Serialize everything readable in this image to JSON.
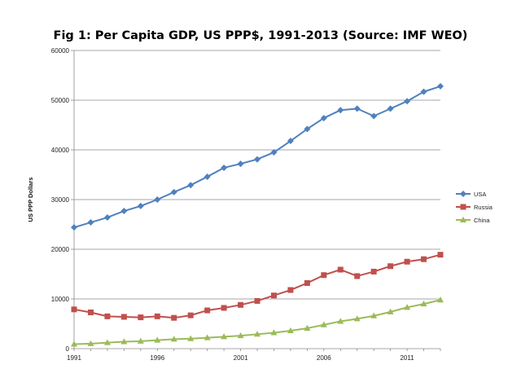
{
  "chart_data": {
    "type": "line",
    "title": "Fig 1: Per Capita GDP, US PPP$, 1991-2013 (Source: IMF WEO)",
    "xlabel": "",
    "ylabel": "US PPP Dollars",
    "x": [
      1991,
      1992,
      1993,
      1994,
      1995,
      1996,
      1997,
      1998,
      1999,
      2000,
      2001,
      2002,
      2003,
      2004,
      2005,
      2006,
      2007,
      2008,
      2009,
      2010,
      2011,
      2012,
      2013
    ],
    "x_tick_labels": [
      "1991",
      "1996",
      "2001",
      "2006",
      "2011"
    ],
    "xlim": [
      1991,
      2013
    ],
    "ylim": [
      0,
      60000
    ],
    "y_tick_labels": [
      "0",
      "10000",
      "20000",
      "30000",
      "40000",
      "50000",
      "60000"
    ],
    "grid": "horizontal",
    "legend_position": "right",
    "series": [
      {
        "name": "USA",
        "color": "#4F81BD",
        "marker": "diamond",
        "values": [
          24400,
          25400,
          26400,
          27700,
          28700,
          30000,
          31500,
          32900,
          34600,
          36400,
          37200,
          38100,
          39500,
          41800,
          44200,
          46400,
          48000,
          48300,
          46800,
          48300,
          49800,
          51700,
          52800
        ]
      },
      {
        "name": "Russia",
        "color": "#C0504D",
        "marker": "square",
        "values": [
          7900,
          7300,
          6500,
          6400,
          6300,
          6500,
          6200,
          6700,
          7700,
          8200,
          8800,
          9600,
          10700,
          11800,
          13200,
          14800,
          15900,
          14600,
          15500,
          16600,
          17500,
          18000,
          18900
        ]
      },
      {
        "name": "China",
        "color": "#9BBB59",
        "marker": "triangle",
        "values": [
          900,
          1000,
          1200,
          1400,
          1500,
          1700,
          1900,
          2000,
          2200,
          2400,
          2600,
          2900,
          3200,
          3600,
          4100,
          4800,
          5500,
          6000,
          6600,
          7400,
          8300,
          9000,
          9800
        ]
      }
    ]
  }
}
